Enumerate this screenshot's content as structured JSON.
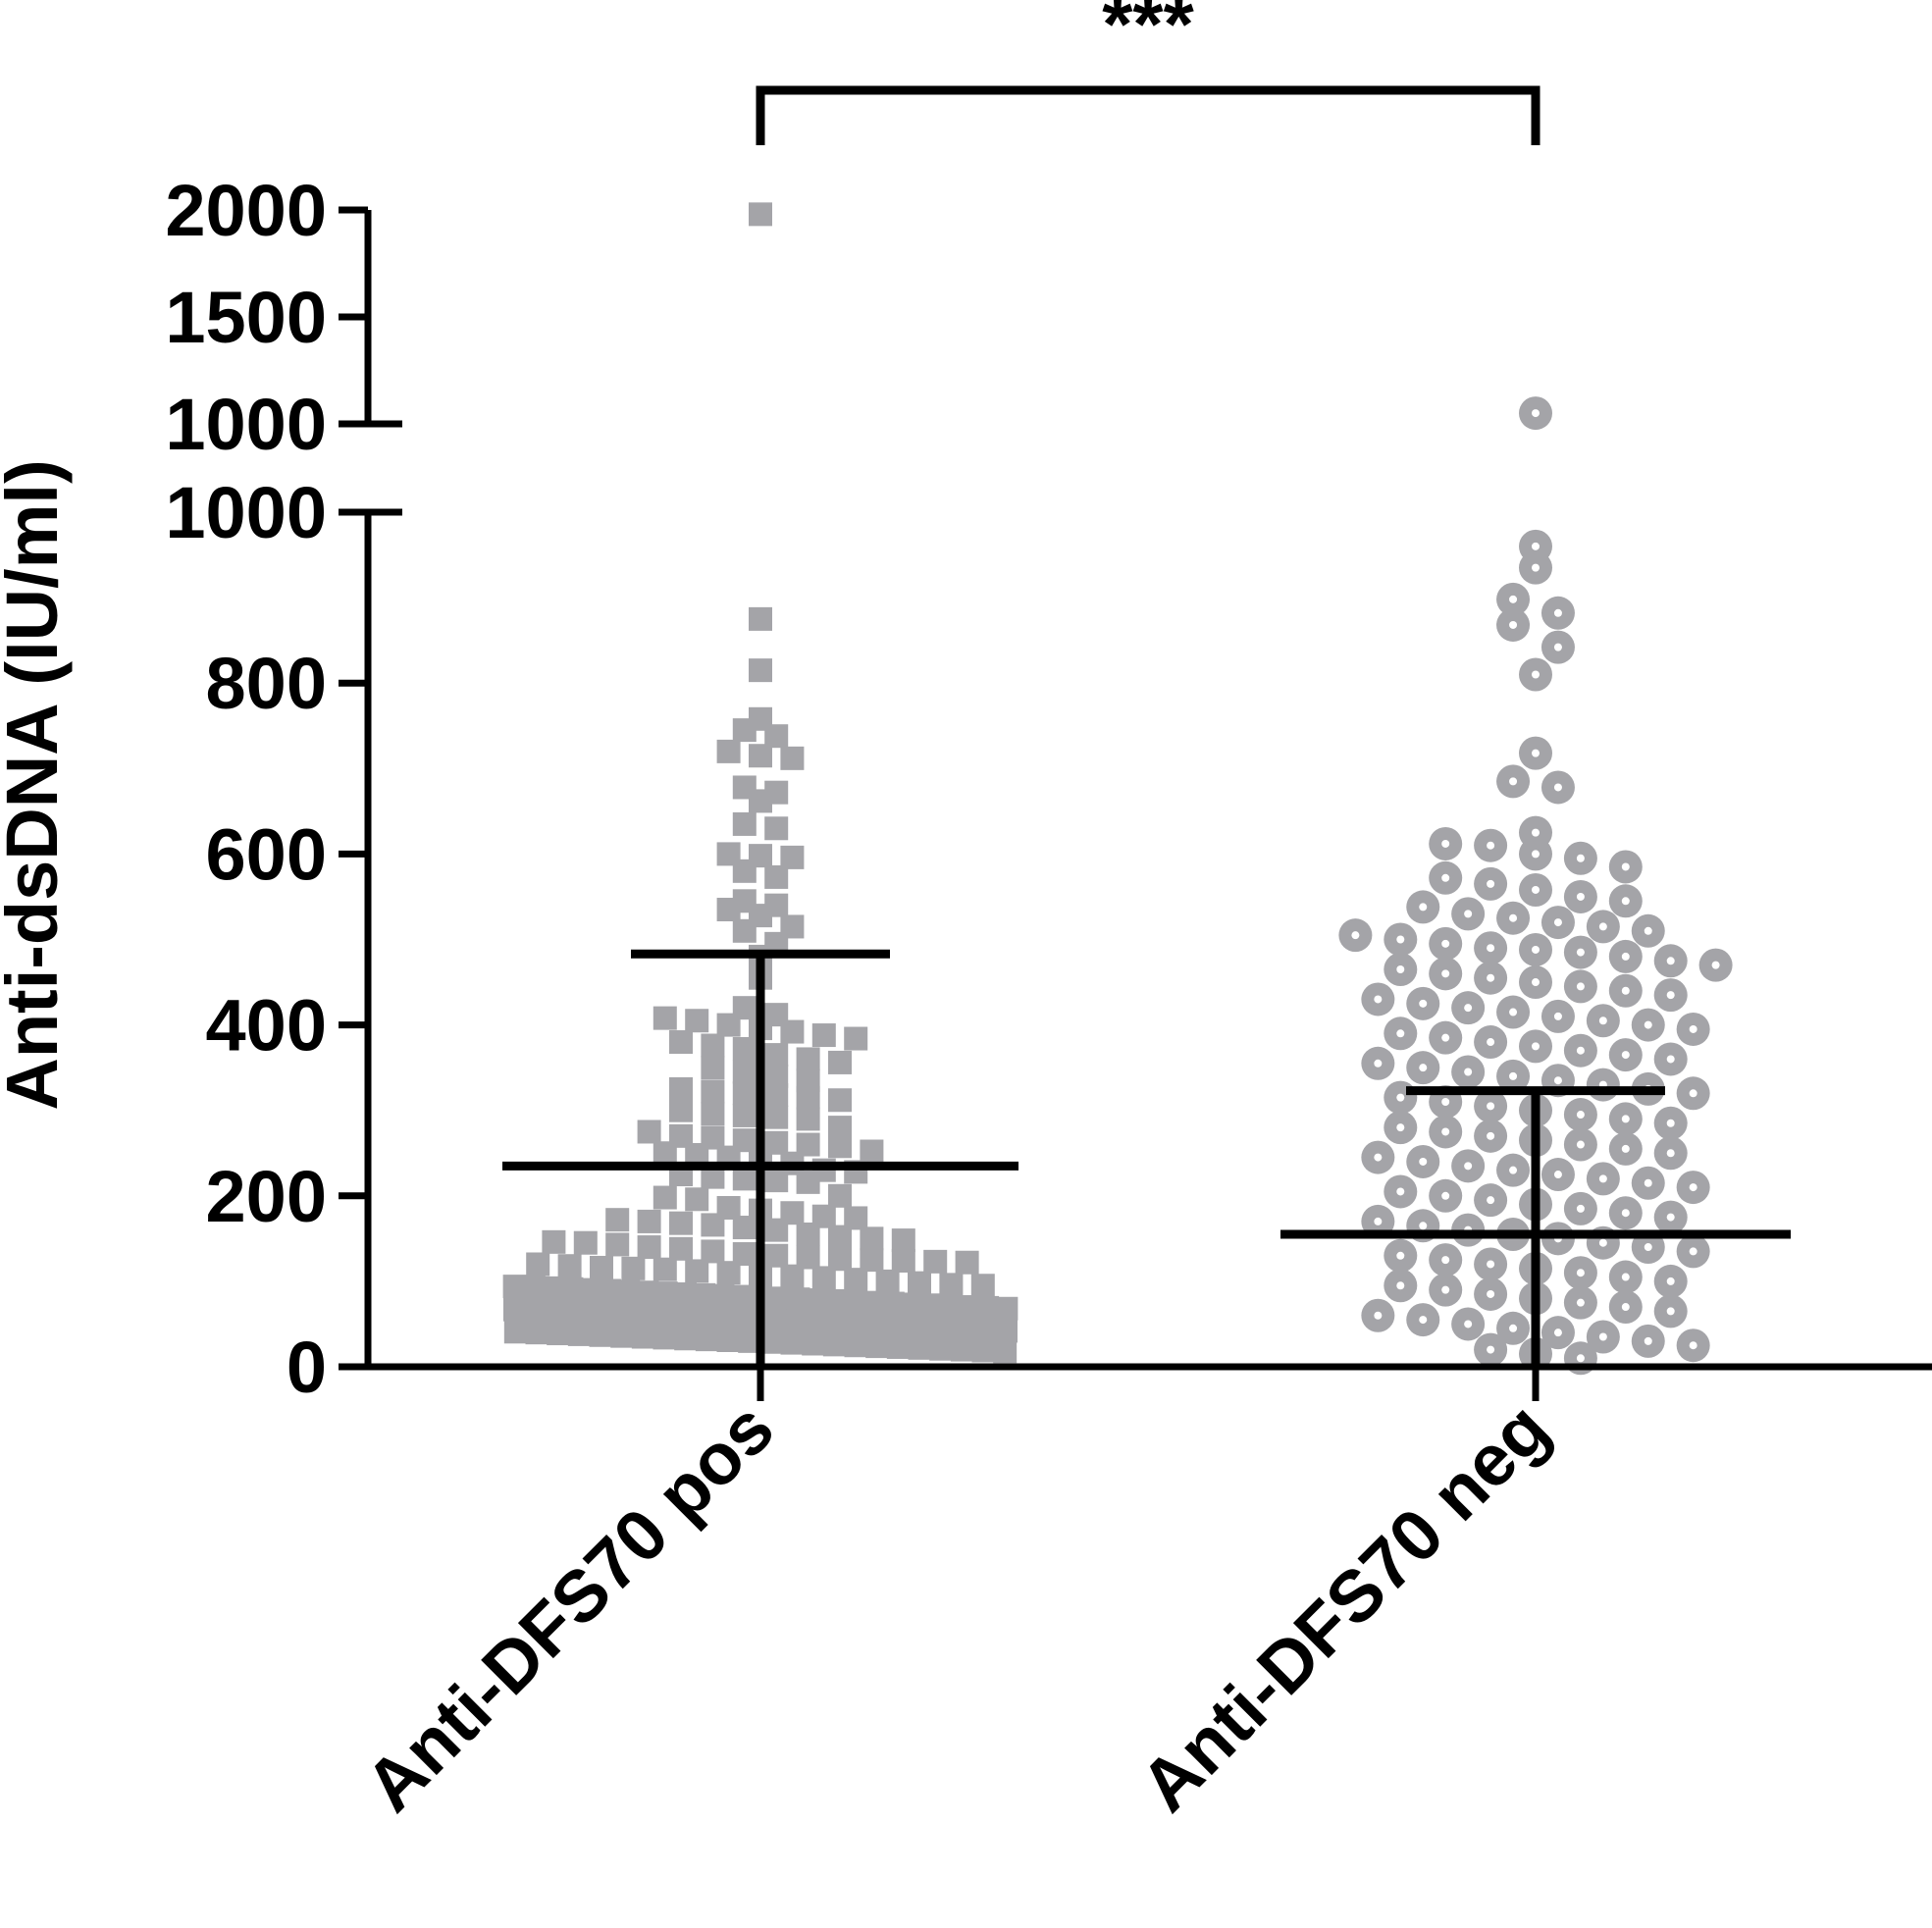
{
  "chart_data": {
    "type": "scatter",
    "title": "",
    "ylabel": "Anti-dsDNA (IU/ml)",
    "xlabel": "",
    "y_axis_segments": {
      "lower": {
        "range": [
          0,
          1000
        ],
        "ticks": [
          "0",
          "200",
          "400",
          "600",
          "800",
          "1000"
        ]
      },
      "upper": {
        "range": [
          1000,
          2000
        ],
        "ticks": [
          "1000",
          "1500",
          "2000"
        ]
      }
    },
    "categories": [
      "Anti-DFS70 pos",
      "Anti-DFS70 neg"
    ],
    "significance": "***",
    "marker_colors": {
      "points": "#a4a4a8",
      "lines": "#000000",
      "ring_center": "#ffffff"
    },
    "series": [
      {
        "category": "Anti-DFS70 pos",
        "marker": "square",
        "summary": {
          "center": 235,
          "upper_bar": 483
        },
        "values": [
          1980,
          875,
          815,
          758,
          745,
          738,
          720,
          715,
          712,
          678,
          672,
          662,
          635,
          630,
          600,
          598,
          596,
          580,
          573,
          545,
          540,
          535,
          528,
          515,
          510,
          495,
          480,
          455,
          420,
          412,
          408,
          405,
          400,
          396,
          392,
          388,
          384,
          380,
          376,
          372,
          365,
          360,
          356,
          350,
          345,
          340,
          335,
          325,
          322,
          320,
          318,
          315,
          312,
          300,
          296,
          294,
          292,
          290,
          280,
          275,
          270,
          268,
          265,
          262,
          260,
          258,
          252,
          250,
          248,
          245,
          242,
          238,
          230,
          228,
          225,
          222,
          220,
          218,
          216,
          200,
          198,
          196,
          186,
          183,
          180,
          176,
          174,
          172,
          170,
          168,
          166,
          163,
          160,
          155,
          152,
          150,
          148,
          146,
          145,
          143,
          140,
          138,
          135,
          132,
          130,
          128,
          126,
          125,
          124,
          123,
          122,
          120,
          118,
          116,
          115,
          114,
          112,
          110,
          108,
          106,
          104,
          102,
          100,
          98,
          96,
          95,
          94,
          93,
          92,
          91,
          90,
          89,
          88,
          87,
          86,
          85,
          84,
          83,
          82,
          81,
          80,
          79,
          78,
          77,
          76,
          75,
          74,
          73,
          72,
          71,
          70,
          69,
          68,
          67,
          66,
          65,
          64,
          63,
          62,
          61,
          60,
          59,
          58,
          57,
          56,
          55,
          54,
          53,
          52,
          51,
          50,
          49,
          48,
          47,
          46,
          45,
          44,
          43,
          42,
          41,
          40,
          39,
          38,
          37,
          36,
          35,
          34,
          33,
          32,
          31,
          30,
          29,
          28,
          27,
          26,
          25,
          24,
          23,
          22,
          21,
          20,
          19,
          18
        ]
      },
      {
        "category": "Anti-DFS70 neg",
        "marker": "circle",
        "summary": {
          "center": 155,
          "upper_bar": 323
        },
        "values": [
          1050,
          960,
          935,
          898,
          882,
          868,
          842,
          810,
          718,
          685,
          678,
          625,
          612,
          610,
          600,
          595,
          585,
          572,
          565,
          558,
          550,
          545,
          538,
          530,
          525,
          520,
          515,
          510,
          505,
          500,
          495,
          490,
          488,
          485,
          480,
          475,
          470,
          465,
          460,
          455,
          450,
          445,
          440,
          435,
          430,
          425,
          420,
          415,
          410,
          405,
          400,
          395,
          390,
          385,
          380,
          375,
          370,
          365,
          360,
          355,
          350,
          345,
          340,
          335,
          330,
          325,
          320,
          315,
          310,
          305,
          300,
          295,
          290,
          285,
          280,
          275,
          270,
          265,
          260,
          255,
          250,
          245,
          240,
          235,
          230,
          225,
          220,
          215,
          210,
          205,
          200,
          195,
          190,
          185,
          180,
          175,
          170,
          165,
          160,
          155,
          150,
          145,
          140,
          135,
          130,
          125,
          120,
          115,
          110,
          105,
          100,
          95,
          90,
          85,
          80,
          75,
          70,
          65,
          60,
          55,
          50,
          45,
          40,
          35,
          30,
          25,
          20,
          15,
          10
        ]
      }
    ]
  }
}
